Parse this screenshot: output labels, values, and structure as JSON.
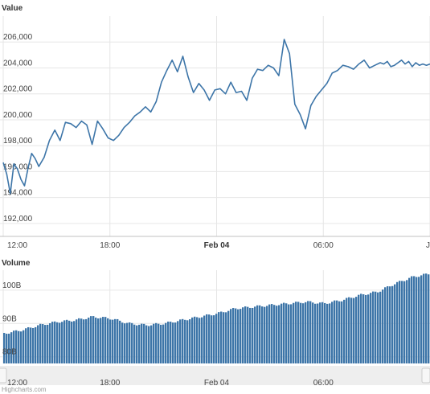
{
  "chart_data": [
    {
      "type": "line",
      "title": "Value",
      "x_start": "Feb 03 12:00",
      "x_end": "Feb 04 12:00",
      "ylim": [
        191000,
        208000
      ],
      "y_ticks": [
        "192,000",
        "194,000",
        "196,000",
        "198,000",
        "200,000",
        "202,000",
        "204,000",
        "206,000"
      ],
      "y_tick_values": [
        192000,
        194000,
        196000,
        198000,
        200000,
        202000,
        204000,
        206000
      ],
      "x_ticks": [
        {
          "label": "12:00",
          "hour": 0,
          "bold": false
        },
        {
          "label": "18:00",
          "hour": 6,
          "bold": false
        },
        {
          "label": "Feb 04",
          "hour": 12,
          "bold": true
        },
        {
          "label": "06:00",
          "hour": 18,
          "bold": false
        },
        {
          "label": "J",
          "hour": 24,
          "bold": false
        }
      ],
      "grid": true,
      "color": "#3d75a8",
      "series": [
        {
          "hours": [
            0,
            0.2,
            0.4,
            0.6,
            0.8,
            1.0,
            1.2,
            1.4,
            1.6,
            1.8,
            2.0,
            2.3,
            2.6,
            2.9,
            3.2,
            3.5,
            3.8,
            4.1,
            4.4,
            4.7,
            5.0,
            5.3,
            5.6,
            5.9,
            6.2,
            6.5,
            6.8,
            7.1,
            7.4,
            7.7,
            8.0,
            8.3,
            8.6,
            8.9,
            9.2,
            9.5,
            9.8,
            10.1,
            10.4,
            10.7,
            11.0,
            11.3,
            11.6,
            11.9,
            12.2,
            12.5,
            12.8,
            13.1,
            13.4,
            13.7,
            14.0,
            14.3,
            14.6,
            14.9,
            15.2,
            15.5,
            15.8,
            16.1,
            16.4,
            16.7,
            17.0,
            17.3,
            17.6,
            17.9,
            18.2,
            18.5,
            18.8,
            19.1,
            19.4,
            19.7,
            20.0,
            20.3,
            20.6,
            20.9,
            21.2,
            21.4,
            21.6,
            21.8,
            22.0,
            22.2,
            22.4,
            22.6,
            22.8,
            23.0,
            23.2,
            23.4,
            23.6,
            23.8,
            24.0
          ],
          "values": [
            196700,
            195800,
            194300,
            196600,
            196200,
            195400,
            194900,
            196300,
            197400,
            197000,
            196400,
            197100,
            198400,
            199200,
            198400,
            199800,
            199700,
            199400,
            199900,
            199600,
            198100,
            199900,
            199300,
            198600,
            198400,
            198800,
            199400,
            199800,
            200300,
            200600,
            201000,
            200600,
            201400,
            202900,
            203800,
            204600,
            203700,
            204900,
            203300,
            202100,
            202800,
            202300,
            201500,
            202300,
            202400,
            202000,
            202900,
            202100,
            202200,
            201500,
            203200,
            203900,
            203800,
            204200,
            204000,
            203400,
            206200,
            205100,
            201200,
            200400,
            199300,
            201100,
            201800,
            202300,
            202800,
            203600,
            203800,
            204200,
            204100,
            203900,
            204300,
            204600,
            204000,
            204200,
            204400,
            204300,
            204500,
            204100,
            204200,
            204400,
            204600,
            204300,
            204500,
            204100,
            204400,
            204200,
            204300,
            204200,
            204300
          ]
        }
      ]
    },
    {
      "type": "area",
      "title": "Volume",
      "ylim": [
        78,
        106
      ],
      "y_ticks": [
        "80B",
        "90B",
        "100B"
      ],
      "y_tick_values": [
        80,
        90,
        100
      ],
      "x_ticks": [
        {
          "label": "12:00",
          "hour": 0,
          "bold": false
        },
        {
          "label": "18:00",
          "hour": 6,
          "bold": false
        },
        {
          "label": "Feb 04",
          "hour": 12,
          "bold": true
        },
        {
          "label": "06:00",
          "hour": 18,
          "bold": false
        }
      ],
      "grid": true,
      "color": "#3d75a8",
      "series": [
        {
          "hours": [
            0,
            1,
            2,
            3,
            4,
            5,
            6,
            7,
            8,
            9,
            10,
            11,
            12,
            13,
            14,
            15,
            16,
            17,
            18,
            19,
            20,
            21,
            22,
            23,
            24
          ],
          "values": [
            87,
            88,
            89.5,
            90.5,
            91,
            92,
            91.5,
            90,
            89.5,
            90,
            91,
            92,
            93,
            94.5,
            95,
            95.5,
            96,
            96.5,
            96,
            97,
            98.5,
            99.5,
            102,
            104,
            105
          ]
        }
      ]
    }
  ],
  "footer": "Highcharts.com"
}
